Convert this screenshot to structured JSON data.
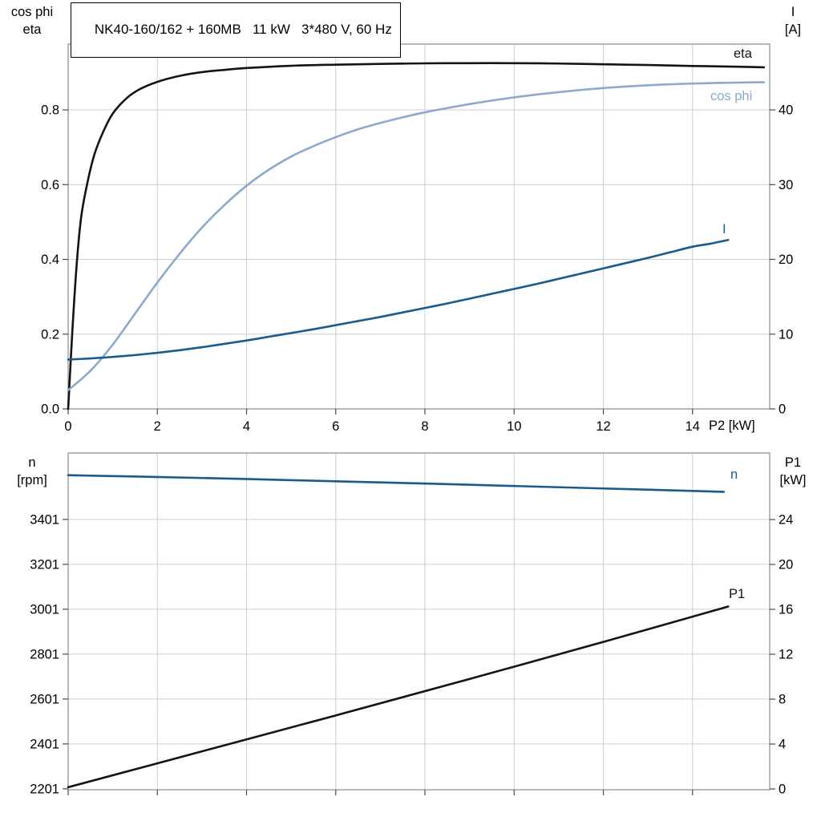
{
  "title": "NK40-160/162 + 160MB   11 kW   3*480 V, 60 Hz",
  "chart_data": [
    {
      "type": "line",
      "x": {
        "label": "P2 [kW]",
        "range": [
          0,
          15.73
        ],
        "ticks": [
          {
            "v": 0,
            "l": "0"
          },
          {
            "v": 2,
            "l": "2"
          },
          {
            "v": 4,
            "l": "4"
          },
          {
            "v": 6,
            "l": "6"
          },
          {
            "v": 8,
            "l": "8"
          },
          {
            "v": 10,
            "l": "10"
          },
          {
            "v": 12,
            "l": "12"
          },
          {
            "v": 14,
            "l": "14"
          }
        ]
      },
      "y_left": {
        "line1": "cos phi",
        "line2": "eta",
        "range": [
          0,
          0.976
        ],
        "ticks": [
          {
            "v": 0,
            "l": "0.0"
          },
          {
            "v": 0.2,
            "l": "0.2"
          },
          {
            "v": 0.4,
            "l": "0.4"
          },
          {
            "v": 0.6,
            "l": "0.6"
          },
          {
            "v": 0.8,
            "l": "0.8"
          }
        ]
      },
      "y_right": {
        "line1": "I",
        "line2": "[A]",
        "range": [
          0,
          48.8
        ],
        "ticks": [
          {
            "v": 0,
            "l": "0"
          },
          {
            "v": 10,
            "l": "10"
          },
          {
            "v": 20,
            "l": "20"
          },
          {
            "v": 30,
            "l": "30"
          },
          {
            "v": 40,
            "l": "40"
          }
        ]
      },
      "series": [
        {
          "name": "eta",
          "axis": "left",
          "color": "#141414",
          "points": [
            [
              0,
              0
            ],
            [
              0.1,
              0.22
            ],
            [
              0.2,
              0.4
            ],
            [
              0.3,
              0.52
            ],
            [
              0.45,
              0.615
            ],
            [
              0.6,
              0.685
            ],
            [
              0.8,
              0.745
            ],
            [
              1,
              0.79
            ],
            [
              1.3,
              0.83
            ],
            [
              1.6,
              0.855
            ],
            [
              2,
              0.875
            ],
            [
              2.5,
              0.891
            ],
            [
              3,
              0.901
            ],
            [
              3.5,
              0.907
            ],
            [
              4,
              0.912
            ],
            [
              5,
              0.918
            ],
            [
              6,
              0.921
            ],
            [
              7,
              0.923
            ],
            [
              8,
              0.9245
            ],
            [
              9,
              0.925
            ],
            [
              10,
              0.925
            ],
            [
              11,
              0.924
            ],
            [
              12,
              0.922
            ],
            [
              13,
              0.92
            ],
            [
              14,
              0.9175
            ],
            [
              15,
              0.9155
            ],
            [
              15.6,
              0.914
            ]
          ]
        },
        {
          "name": "cos phi",
          "axis": "left",
          "color": "#8da9cb",
          "points": [
            [
              0,
              0.05
            ],
            [
              0.5,
              0.102
            ],
            [
              1,
              0.172
            ],
            [
              1.5,
              0.255
            ],
            [
              2,
              0.338
            ],
            [
              2.5,
              0.415
            ],
            [
              3,
              0.485
            ],
            [
              3.5,
              0.545
            ],
            [
              4,
              0.597
            ],
            [
              4.5,
              0.64
            ],
            [
              5,
              0.675
            ],
            [
              5.5,
              0.703
            ],
            [
              6,
              0.727
            ],
            [
              6.5,
              0.748
            ],
            [
              7,
              0.765
            ],
            [
              7.5,
              0.78
            ],
            [
              8,
              0.7935
            ],
            [
              8.5,
              0.805
            ],
            [
              9,
              0.8155
            ],
            [
              9.5,
              0.825
            ],
            [
              10,
              0.8335
            ],
            [
              10.5,
              0.841
            ],
            [
              11,
              0.8475
            ],
            [
              11.5,
              0.8535
            ],
            [
              12,
              0.8585
            ],
            [
              12.5,
              0.8625
            ],
            [
              13,
              0.866
            ],
            [
              13.5,
              0.8685
            ],
            [
              14,
              0.8705
            ],
            [
              14.5,
              0.872
            ],
            [
              15,
              0.873
            ],
            [
              15.6,
              0.874
            ]
          ]
        },
        {
          "name": "I",
          "axis": "right",
          "color": "#1b5b8b",
          "points": [
            [
              0,
              6.6
            ],
            [
              0.5,
              6.75
            ],
            [
              1,
              6.95
            ],
            [
              1.5,
              7.2
            ],
            [
              2,
              7.5
            ],
            [
              2.5,
              7.85
            ],
            [
              3,
              8.25
            ],
            [
              3.5,
              8.7
            ],
            [
              4,
              9.15
            ],
            [
              4.5,
              9.65
            ],
            [
              5,
              10.15
            ],
            [
              5.5,
              10.65
            ],
            [
              6,
              11.2
            ],
            [
              6.5,
              11.75
            ],
            [
              7,
              12.3
            ],
            [
              7.5,
              12.9
            ],
            [
              8,
              13.5
            ],
            [
              8.5,
              14.1
            ],
            [
              9,
              14.75
            ],
            [
              9.5,
              15.4
            ],
            [
              10,
              16.05
            ],
            [
              10.5,
              16.7
            ],
            [
              11,
              17.4
            ],
            [
              11.5,
              18.1
            ],
            [
              12,
              18.8
            ],
            [
              12.5,
              19.5
            ],
            [
              13,
              20.2
            ],
            [
              13.5,
              20.95
            ],
            [
              14,
              21.7
            ],
            [
              14.4,
              22.1
            ],
            [
              14.8,
              22.6
            ]
          ]
        }
      ]
    },
    {
      "type": "line",
      "x": {
        "label": "",
        "range": [
          0,
          15.73
        ],
        "ticks": [
          {
            "v": 0
          },
          {
            "v": 2
          },
          {
            "v": 4
          },
          {
            "v": 6
          },
          {
            "v": 8
          },
          {
            "v": 10
          },
          {
            "v": 12
          },
          {
            "v": 14
          }
        ]
      },
      "y_left": {
        "line1": "n",
        "line2": "[rpm]",
        "range": [
          2197,
          3697
        ],
        "ticks": [
          {
            "v": 2201,
            "l": "2201"
          },
          {
            "v": 2401,
            "l": "2401"
          },
          {
            "v": 2601,
            "l": "2601"
          },
          {
            "v": 2801,
            "l": "2801"
          },
          {
            "v": 3001,
            "l": "3001"
          },
          {
            "v": 3201,
            "l": "3201"
          },
          {
            "v": 3401,
            "l": "3401"
          }
        ]
      },
      "y_right": {
        "line1": "P1",
        "line2": "[kW]",
        "range": [
          -0.07,
          29.93
        ],
        "ticks": [
          {
            "v": 0,
            "l": "0"
          },
          {
            "v": 4,
            "l": "4"
          },
          {
            "v": 8,
            "l": "8"
          },
          {
            "v": 12,
            "l": "12"
          },
          {
            "v": 16,
            "l": "16"
          },
          {
            "v": 20,
            "l": "20"
          },
          {
            "v": 24,
            "l": "24"
          }
        ]
      },
      "series": [
        {
          "name": "n",
          "axis": "left",
          "color": "#1b5b8b",
          "points": [
            [
              0,
              3598
            ],
            [
              2,
              3590
            ],
            [
              4,
              3581
            ],
            [
              6,
              3571
            ],
            [
              8,
              3561
            ],
            [
              10,
              3550
            ],
            [
              12,
              3539
            ],
            [
              14,
              3528
            ],
            [
              14.7,
              3524
            ]
          ]
        },
        {
          "name": "P1",
          "axis": "right",
          "color": "#141414",
          "points": [
            [
              0,
              0.15
            ],
            [
              3,
              3.35
            ],
            [
              6,
              6.55
            ],
            [
              9,
              9.8
            ],
            [
              12,
              13.1
            ],
            [
              14.8,
              16.25
            ]
          ]
        }
      ]
    }
  ]
}
